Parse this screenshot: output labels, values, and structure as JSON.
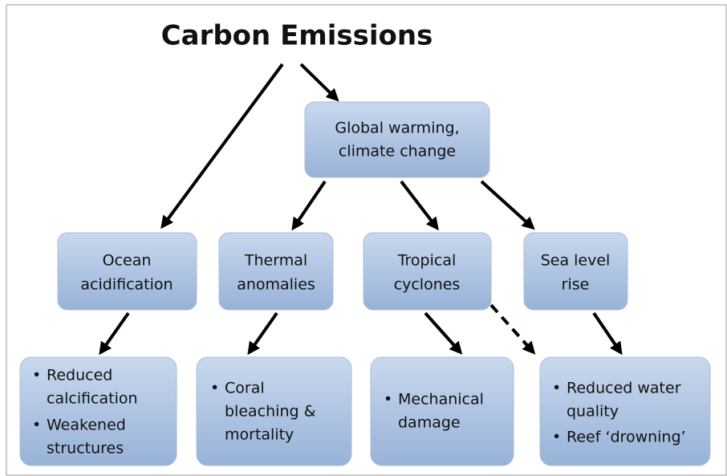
{
  "title": "Carbon Emissions",
  "nodes": [
    {
      "lines": [
        "Global warming,",
        "climate change"
      ]
    },
    {
      "lines": [
        "Ocean",
        "acidification"
      ]
    },
    {
      "lines": [
        "Thermal",
        "anomalies"
      ]
    },
    {
      "lines": [
        "Tropical",
        "cyclones"
      ]
    },
    {
      "lines": [
        "Sea level",
        "rise"
      ]
    },
    {
      "items": [
        [
          "Reduced",
          "calcification"
        ],
        [
          "Weakened",
          "structures"
        ]
      ]
    },
    {
      "items": [
        [
          "Coral",
          "bleaching &",
          "mortality"
        ]
      ]
    },
    {
      "items": [
        [
          "Mechanical",
          "damage"
        ]
      ]
    },
    {
      "items": [
        [
          "Reduced water",
          "quality"
        ],
        [
          "Reef ‘drowning’"
        ]
      ]
    }
  ]
}
